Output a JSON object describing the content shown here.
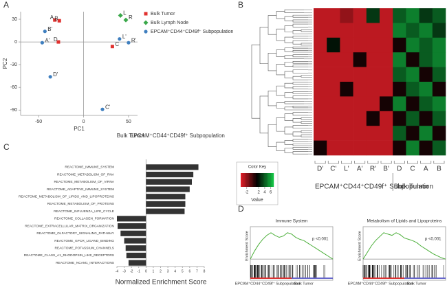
{
  "panel_labels": [
    "A",
    "B",
    "C",
    "D"
  ],
  "chart_data": [
    {
      "type": "scatter",
      "xlabel": "PC1",
      "ylabel": "PC2",
      "xlim": [
        -70,
        60
      ],
      "ylim": [
        -97,
        40
      ],
      "xticks": [
        -50,
        0,
        50
      ],
      "yticks": [
        30,
        0,
        -30,
        -60,
        -90
      ],
      "series": [
        {
          "name": "Bulk Tumor",
          "color": "#e0312f",
          "marker": "square",
          "x": [
            -32,
            -27,
            -28,
            32
          ],
          "y": [
            29,
            28,
            0,
            -6
          ],
          "point_labels": [
            "A",
            "B",
            "D",
            "C"
          ]
        },
        {
          "name": "Bulk Lymph Node",
          "color": "#3aa84a",
          "marker": "diamond",
          "x": [
            41,
            47
          ],
          "y": [
            35,
            29
          ],
          "point_labels": [
            "L",
            "R"
          ]
        },
        {
          "name": "EPCAM⁺CD44⁺CD49f⁺ Subpopulation",
          "color": "#3f7fbf",
          "marker": "circle",
          "x": [
            -43,
            -46,
            40,
            50,
            -37,
            21
          ],
          "y": [
            14,
            -1,
            4,
            -1,
            -46,
            -89
          ],
          "point_labels": [
            "B'",
            "A'",
            "L'",
            "R'",
            "D'",
            "C'"
          ]
        }
      ]
    },
    {
      "type": "heatmap",
      "columns": [
        "D'",
        "C'",
        "L'",
        "A'",
        "R'",
        "B'",
        "D",
        "C",
        "A",
        "B"
      ],
      "values": [
        [
          -3,
          -3,
          -2,
          -3,
          3,
          -3,
          4,
          5,
          3,
          4
        ],
        [
          -3,
          -3,
          -3,
          -3,
          -3,
          -3,
          5,
          4,
          5,
          3
        ],
        [
          -3,
          2,
          -3,
          -3,
          -3,
          -3,
          1,
          5,
          4,
          5
        ],
        [
          -3,
          -3,
          -3,
          1,
          -3,
          -3,
          5,
          1,
          4,
          5
        ],
        [
          -3,
          -3,
          -3,
          -3,
          -3,
          -3,
          4,
          5,
          1,
          4
        ],
        [
          -3,
          -3,
          1,
          -3,
          -3,
          -3,
          1,
          4,
          5,
          1
        ],
        [
          -3,
          -3,
          -3,
          -3,
          -3,
          1,
          5,
          1,
          4,
          5
        ],
        [
          -3,
          -3,
          -3,
          -3,
          1,
          -3,
          1,
          4,
          1,
          4
        ],
        [
          -3,
          -3,
          -3,
          -3,
          -3,
          -3,
          4,
          1,
          5,
          1
        ],
        [
          1,
          -3,
          -3,
          -3,
          -3,
          -3,
          1,
          5,
          1,
          4
        ]
      ],
      "clim": [
        -4,
        7
      ],
      "colorbar_title": "Color Key",
      "colorbar_label": "Value",
      "colorbar_ticks": [
        -2,
        2,
        4,
        6
      ],
      "groups": [
        "EPCAM⁺CD44⁺CD49f⁺ Subpopulation",
        "Bulk Tumor"
      ]
    },
    {
      "type": "hbar",
      "xlabel": "Normalized Enrichment Score",
      "color": "#333333",
      "group_labels": [
        "Bulk Tumor",
        "EPCAM⁺CD44⁺CD49f⁺ Subpopulation"
      ],
      "categories": [
        "REACTOME_IMMUNE_SYSTEM",
        "REACTOME_METABOLISM_OF_RNA",
        "REACTOME_METABOLISM_OF_VIRNA",
        "REACTOME_ADAPTIVE_IMMUNE_SYSTEM",
        "REACTOME_METABOLISM_OF_LIPIDS_AND_LIPOPROTEINS",
        "REACTOME_METABOLISM_OF_PROTEINS",
        "REACTOME_INFLUENZA_LIFE_CYCLE",
        "REACTOME_COLLAGEN_FORMATION",
        "REACTOME_EXTRACELLULAR_MATRIX_ORGANIZATION",
        "REACTOME_OLFACTORY_SIGNALING_PATHWAY",
        "REACTOME_GPCR_LIGAND_BINDING",
        "REACTOME_POTASSIUM_CHANNELS",
        "REACTOME_CLASS_A1_RHODOPSIN_LIKE_RECEPTORS",
        "REACTOME_NCAM1_INTERACTIONS"
      ],
      "values": [
        7.2,
        6.5,
        6.3,
        6.0,
        5.4,
        5.4,
        5.3,
        -4.0,
        -3.9,
        -3.5,
        -3.0,
        -2.8,
        -2.7,
        -2.4
      ],
      "xlim": [
        -4,
        8
      ],
      "xticks": [
        -4,
        -3,
        -2,
        -1,
        0,
        1,
        2,
        3,
        4,
        5,
        6,
        7,
        8
      ]
    },
    {
      "type": "line",
      "title": "Immune System",
      "ylabel": "Enrichment Score",
      "annotation": "p <0.001",
      "color": "#4caf3a",
      "xlabels": [
        "EPCAM⁺CD44⁺CD49f⁺ Subpopulation",
        "Bulk Tumor"
      ],
      "x": [
        0,
        5,
        10,
        15,
        20,
        25,
        30,
        35,
        40,
        45,
        50,
        55,
        60,
        65,
        70,
        75,
        80,
        85,
        90,
        95,
        100
      ],
      "values": [
        0,
        0.12,
        0.22,
        0.3,
        0.36,
        0.4,
        0.36,
        0.33,
        0.35,
        0.4,
        0.38,
        0.33,
        0.3,
        0.28,
        0.24,
        0.2,
        0.16,
        0.12,
        0.08,
        0.04,
        0
      ],
      "xlim": [
        0,
        100
      ],
      "ylim": [
        -0.05,
        0.45
      ]
    },
    {
      "type": "line",
      "title": "Metabolism of Lipids and Lipoproteins",
      "ylabel": "Enrichment Score",
      "annotation": "p <0.001",
      "color": "#4caf3a",
      "xlabels": [
        "EPCAM⁺CD44⁺CD49f⁺ Subpopulation",
        "Bulk Tumor"
      ],
      "x": [
        0,
        5,
        10,
        15,
        20,
        25,
        30,
        35,
        40,
        45,
        50,
        55,
        60,
        65,
        70,
        75,
        80,
        85,
        90,
        95,
        100
      ],
      "values": [
        0,
        0.1,
        0.2,
        0.28,
        0.34,
        0.4,
        0.38,
        0.36,
        0.4,
        0.37,
        0.32,
        0.3,
        0.28,
        0.25,
        0.2,
        0.16,
        0.12,
        0.08,
        0.05,
        0.02,
        0
      ],
      "xlim": [
        0,
        100
      ],
      "ylim": [
        -0.05,
        0.45
      ]
    }
  ]
}
